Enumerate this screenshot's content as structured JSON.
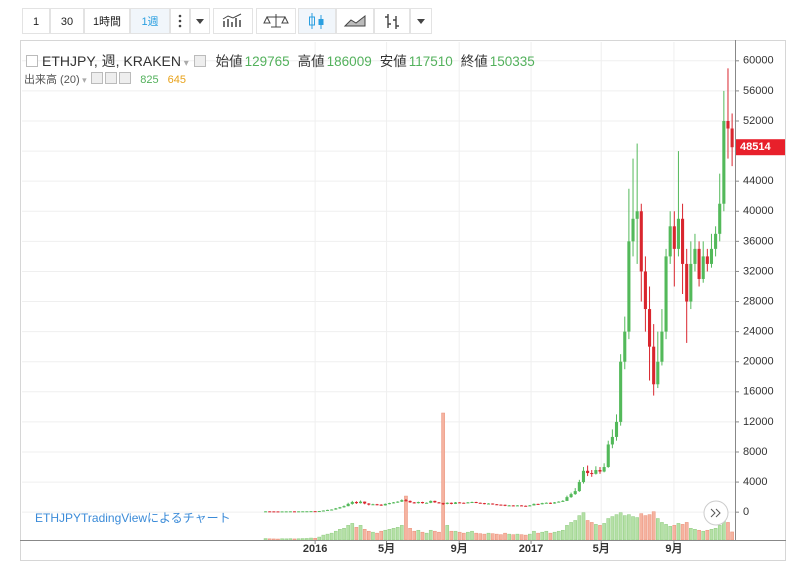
{
  "toolbar": {
    "intervals": [
      "1",
      "30",
      "1時間",
      "1週"
    ]
  },
  "watermark": "ETHJPYTradingViewによるチャート",
  "chart_data": {
    "type": "candlestick",
    "title": "ETHJPY, 週, KRAKEN",
    "ohlc_readout": [
      {
        "label": "始値",
        "value": 129765
      },
      {
        "label": "高値",
        "value": 186009
      },
      {
        "label": "安値",
        "value": 117510
      },
      {
        "label": "終値",
        "value": 150335
      }
    ],
    "volume_label": "出来高 (20)",
    "volume_readout": [
      825,
      645
    ],
    "colors": {
      "up": "#53b95a",
      "down": "#d9262e",
      "volume_up": "#b5e0a6",
      "volume_down": "#f5b3a0",
      "last_price": "#e8202b",
      "readout_volume": "#53b15c",
      "readout_ma": "#e8a21a"
    },
    "xlim": [
      -71,
      101.7
    ],
    "xticks": [
      {
        "value": 0,
        "label": "2016"
      },
      {
        "value": 17.3,
        "label": "5月"
      },
      {
        "value": 34.9,
        "label": "9月"
      },
      {
        "value": 52.3,
        "label": "2017"
      },
      {
        "value": 69.3,
        "label": "5月"
      },
      {
        "value": 86.9,
        "label": "9月"
      }
    ],
    "ylim": [
      -3700,
      62500
    ],
    "yticks": [
      0,
      4000,
      8000,
      12000,
      16000,
      20000,
      24000,
      28000,
      32000,
      36000,
      40000,
      44000,
      48000,
      52000,
      56000,
      60000
    ],
    "grid": true,
    "x": [
      -12,
      -11,
      -10,
      -9,
      -8,
      -7,
      -6,
      -5,
      -4,
      -3,
      -2,
      -1,
      0,
      1,
      2,
      3,
      4,
      5,
      6,
      7,
      8,
      9,
      10,
      11,
      12,
      13,
      14,
      15,
      16,
      17,
      18,
      19,
      20,
      21,
      22,
      23,
      24,
      25,
      26,
      27,
      28,
      29,
      30,
      31,
      32,
      33,
      34,
      35,
      36,
      37,
      38,
      39,
      40,
      41,
      42,
      43,
      44,
      45,
      46,
      47,
      48,
      49,
      50,
      51,
      52,
      53,
      54,
      55,
      56,
      57,
      58,
      59,
      60,
      61,
      62,
      63,
      64,
      65,
      66,
      67,
      68,
      69,
      70,
      71,
      72,
      73,
      74,
      75,
      76,
      77,
      78,
      79,
      80,
      81,
      82,
      83,
      84,
      85,
      86,
      87,
      88,
      89,
      90,
      91,
      92,
      93,
      94,
      95,
      96,
      97,
      98,
      99,
      100,
      101
    ],
    "candles": [
      [
        105,
        118,
        100,
        110
      ],
      [
        110,
        115,
        100,
        105
      ],
      [
        105,
        110,
        96,
        100
      ],
      [
        100,
        104,
        90,
        95
      ],
      [
        95,
        106,
        92,
        100
      ],
      [
        100,
        110,
        97,
        105
      ],
      [
        105,
        115,
        100,
        110
      ],
      [
        110,
        114,
        100,
        105
      ],
      [
        105,
        116,
        102,
        110
      ],
      [
        110,
        120,
        106,
        115
      ],
      [
        115,
        126,
        112,
        120
      ],
      [
        120,
        138,
        116,
        130
      ],
      [
        130,
        136,
        112,
        120
      ],
      [
        120,
        160,
        115,
        150
      ],
      [
        150,
        240,
        145,
        220
      ],
      [
        220,
        320,
        200,
        300
      ],
      [
        300,
        380,
        280,
        350
      ],
      [
        350,
        560,
        330,
        500
      ],
      [
        500,
        700,
        460,
        650
      ],
      [
        650,
        900,
        600,
        800
      ],
      [
        800,
        1250,
        780,
        1100
      ],
      [
        1100,
        1500,
        1000,
        1350
      ],
      [
        1350,
        1450,
        1100,
        1200
      ],
      [
        1200,
        1550,
        1150,
        1400
      ],
      [
        1400,
        1420,
        1050,
        1150
      ],
      [
        1150,
        1200,
        900,
        1000
      ],
      [
        1000,
        1120,
        950,
        1050
      ],
      [
        1050,
        1100,
        920,
        1000
      ],
      [
        1000,
        1060,
        850,
        900
      ],
      [
        900,
        1150,
        880,
        1100
      ],
      [
        1100,
        1250,
        1050,
        1200
      ],
      [
        1200,
        1350,
        1150,
        1300
      ],
      [
        1300,
        1450,
        1250,
        1400
      ],
      [
        1400,
        1700,
        1350,
        1600
      ],
      [
        1600,
        1750,
        1400,
        1500
      ],
      [
        1500,
        1550,
        1250,
        1300
      ],
      [
        1300,
        1350,
        1150,
        1200
      ],
      [
        1200,
        1400,
        1150,
        1350
      ],
      [
        1350,
        1380,
        1150,
        1200
      ],
      [
        1200,
        1300,
        1150,
        1250
      ],
      [
        1250,
        1550,
        1200,
        1500
      ],
      [
        1500,
        1520,
        1250,
        1300
      ],
      [
        1300,
        1350,
        1150,
        1200
      ],
      [
        1200,
        1250,
        950,
        1100
      ],
      [
        1100,
        1300,
        1050,
        1250
      ],
      [
        1250,
        1280,
        1050,
        1100
      ],
      [
        1100,
        1350,
        1080,
        1300
      ],
      [
        1300,
        1330,
        1200,
        1250
      ],
      [
        1250,
        1280,
        1150,
        1200
      ],
      [
        1200,
        1350,
        1180,
        1300
      ],
      [
        1300,
        1400,
        1250,
        1350
      ],
      [
        1350,
        1380,
        1200,
        1250
      ],
      [
        1250,
        1280,
        1150,
        1200
      ],
      [
        1200,
        1230,
        1050,
        1100
      ],
      [
        1100,
        1200,
        1080,
        1150
      ],
      [
        1150,
        1170,
        1000,
        1050
      ],
      [
        1050,
        1080,
        950,
        1000
      ],
      [
        1000,
        1030,
        950,
        980
      ],
      [
        980,
        1000,
        800,
        850
      ],
      [
        850,
        950,
        830,
        900
      ],
      [
        900,
        920,
        820,
        850
      ],
      [
        850,
        930,
        840,
        900
      ],
      [
        900,
        920,
        820,
        850
      ],
      [
        850,
        880,
        800,
        830
      ],
      [
        830,
        950,
        820,
        900
      ],
      [
        900,
        1150,
        880,
        1100
      ],
      [
        1100,
        1120,
        1000,
        1050
      ],
      [
        1050,
        1250,
        1030,
        1200
      ],
      [
        1200,
        1300,
        1150,
        1250
      ],
      [
        1250,
        1280,
        1100,
        1150
      ],
      [
        1150,
        1350,
        1120,
        1300
      ],
      [
        1300,
        1450,
        1280,
        1400
      ],
      [
        1400,
        1600,
        1380,
        1500
      ],
      [
        1500,
        2200,
        1480,
        2000
      ],
      [
        2000,
        2600,
        1900,
        2400
      ],
      [
        2400,
        3200,
        2300,
        2800
      ],
      [
        2800,
        4300,
        2700,
        4000
      ],
      [
        4000,
        6000,
        3800,
        5500
      ],
      [
        5500,
        6200,
        4800,
        5200
      ],
      [
        5200,
        5600,
        4700,
        5100
      ],
      [
        5100,
        6100,
        5000,
        5600
      ],
      [
        5600,
        6000,
        5100,
        5400
      ],
      [
        5400,
        6500,
        5300,
        6000
      ],
      [
        6000,
        9500,
        5900,
        9000
      ],
      [
        9000,
        11000,
        8500,
        10000
      ],
      [
        10000,
        13000,
        9500,
        12000
      ],
      [
        12000,
        21000,
        11500,
        20000
      ],
      [
        20000,
        26000,
        19000,
        24000
      ],
      [
        24000,
        43000,
        23000,
        36000
      ],
      [
        36000,
        47000,
        34000,
        39000
      ],
      [
        39000,
        49000,
        33000,
        40000
      ],
      [
        40000,
        41000,
        28000,
        32000
      ],
      [
        32000,
        34000,
        24000,
        27000
      ],
      [
        27000,
        30000,
        17500,
        22000
      ],
      [
        22000,
        25000,
        15500,
        17000
      ],
      [
        17000,
        24000,
        16500,
        20000
      ],
      [
        20000,
        27000,
        19500,
        24000
      ],
      [
        24000,
        35000,
        23000,
        34000
      ],
      [
        34000,
        40000,
        33000,
        38000
      ],
      [
        38000,
        40000,
        30000,
        35000
      ],
      [
        35000,
        48000,
        34000,
        39000
      ],
      [
        39000,
        41000,
        29000,
        33000
      ],
      [
        33000,
        35000,
        22500,
        28000
      ],
      [
        28000,
        36000,
        27000,
        33000
      ],
      [
        33000,
        37000,
        32000,
        35000
      ],
      [
        35000,
        36000,
        30000,
        31000
      ],
      [
        31000,
        36000,
        30500,
        34000
      ],
      [
        34000,
        35000,
        32000,
        33000
      ],
      [
        33000,
        37000,
        32500,
        35000
      ],
      [
        35000,
        38000,
        34000,
        37000
      ],
      [
        37000,
        45000,
        36000,
        41000
      ],
      [
        41000,
        56000,
        40000,
        52000
      ],
      [
        52000,
        59000,
        47000,
        51000
      ],
      [
        51000,
        53000,
        46000,
        48514
      ]
    ],
    "volumes": [
      150,
      120,
      110,
      100,
      130,
      120,
      140,
      110,
      130,
      150,
      160,
      200,
      180,
      300,
      500,
      600,
      700,
      900,
      1100,
      1200,
      1500,
      1700,
      1300,
      1500,
      1100,
      900,
      800,
      700,
      900,
      1000,
      1100,
      1200,
      1300,
      1500,
      4500,
      1200,
      900,
      1000,
      800,
      700,
      1000,
      900,
      800,
      13000,
      1500,
      900,
      900,
      800,
      700,
      800,
      900,
      700,
      650,
      600,
      700,
      650,
      600,
      550,
      700,
      600,
      550,
      600,
      550,
      500,
      600,
      900,
      700,
      800,
      900,
      700,
      800,
      900,
      1000,
      1500,
      1800,
      2000,
      2500,
      2800,
      2000,
      1800,
      1600,
      1500,
      1700,
      2200,
      2400,
      2600,
      2800,
      2500,
      2600,
      2400,
      2300,
      2700,
      2500,
      2600,
      2900,
      2200,
      1800,
      1600,
      1400,
      1500,
      1700,
      1600,
      1800,
      1200,
      1100,
      1000,
      900,
      1000,
      1100,
      1200,
      1500,
      2200,
      1800,
      825
    ]
  }
}
